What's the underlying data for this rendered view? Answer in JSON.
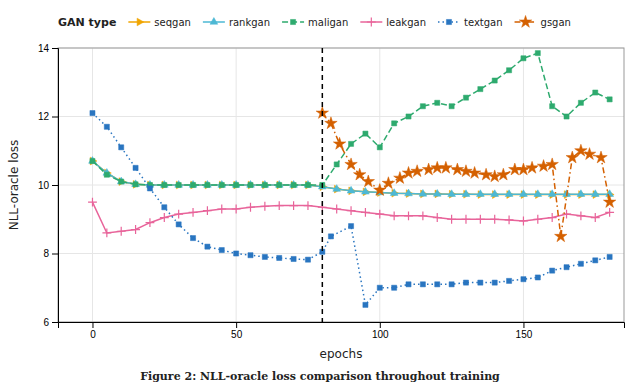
{
  "chart_data": {
    "type": "line",
    "xlabel": "epochs",
    "ylabel": "NLL-oracle loss",
    "caption": "Figure 2: NLL-oracle loss comparison throughout training",
    "legend_title": "GAN type",
    "legend": "top",
    "grid": true,
    "xlim": [
      -12,
      185
    ],
    "ylim": [
      6,
      14
    ],
    "xticks": [
      0,
      50,
      100,
      150
    ],
    "yticks": [
      6,
      8,
      10,
      12,
      14
    ],
    "vline_x": 80,
    "series": [
      {
        "name": "seqgan",
        "color": "#F0A500",
        "marker": "triangle-right",
        "line_style": "solid",
        "x": [
          0,
          5,
          10,
          15,
          20,
          25,
          30,
          35,
          40,
          45,
          50,
          55,
          60,
          65,
          70,
          75,
          80,
          85,
          90,
          95,
          100,
          105,
          110,
          115,
          120,
          125,
          130,
          135,
          140,
          145,
          150,
          155,
          160,
          165,
          170,
          175,
          180
        ],
        "values": [
          10.7,
          10.35,
          10.1,
          10.02,
          10.0,
          10.0,
          10.0,
          10.0,
          10.0,
          10.0,
          10.0,
          10.0,
          10.0,
          10.0,
          10.0,
          10.0,
          9.95,
          9.88,
          9.83,
          9.8,
          9.78,
          9.76,
          9.75,
          9.74,
          9.74,
          9.73,
          9.73,
          9.72,
          9.72,
          9.72,
          9.72,
          9.72,
          9.72,
          9.72,
          9.72,
          9.72,
          9.72
        ]
      },
      {
        "name": "rankgan",
        "color": "#4DB8D4",
        "marker": "triangle-up",
        "line_style": "solid",
        "x": [
          0,
          5,
          10,
          15,
          20,
          25,
          30,
          35,
          40,
          45,
          50,
          55,
          60,
          65,
          70,
          75,
          80,
          85,
          90,
          95,
          100,
          105,
          110,
          115,
          120,
          125,
          130,
          135,
          140,
          145,
          150,
          155,
          160,
          165,
          170,
          175,
          180
        ],
        "values": [
          10.7,
          10.35,
          10.1,
          10.02,
          10.0,
          10.0,
          10.0,
          10.0,
          10.0,
          10.0,
          10.0,
          10.0,
          10.0,
          10.0,
          10.0,
          10.0,
          9.95,
          9.88,
          9.83,
          9.8,
          9.78,
          9.76,
          9.75,
          9.74,
          9.74,
          9.73,
          9.73,
          9.73,
          9.73,
          9.73,
          9.73,
          9.73,
          9.73,
          9.73,
          9.73,
          9.73,
          9.73
        ]
      },
      {
        "name": "maligan",
        "color": "#2EAA6E",
        "marker": "square",
        "line_style": "dashed",
        "x": [
          0,
          5,
          10,
          15,
          20,
          25,
          30,
          35,
          40,
          45,
          50,
          55,
          60,
          65,
          70,
          75,
          80,
          85,
          90,
          95,
          100,
          105,
          110,
          115,
          120,
          125,
          130,
          135,
          140,
          145,
          150,
          155,
          160,
          165,
          170,
          175,
          180
        ],
        "values": [
          10.7,
          10.3,
          10.1,
          10.02,
          10.0,
          10.0,
          10.0,
          10.0,
          10.0,
          10.0,
          10.0,
          10.0,
          10.0,
          10.0,
          10.0,
          10.0,
          10.0,
          10.6,
          11.2,
          11.5,
          11.1,
          11.8,
          12.0,
          12.3,
          12.4,
          12.3,
          12.55,
          12.8,
          13.05,
          13.35,
          13.7,
          13.85,
          12.3,
          12.0,
          12.4,
          12.7,
          12.5
        ]
      },
      {
        "name": "leakgan",
        "color": "#E8649A",
        "marker": "plus",
        "line_style": "solid",
        "x": [
          0,
          5,
          10,
          15,
          20,
          25,
          30,
          35,
          40,
          45,
          50,
          55,
          60,
          65,
          70,
          75,
          80,
          85,
          90,
          95,
          100,
          105,
          110,
          115,
          120,
          125,
          130,
          135,
          140,
          145,
          150,
          155,
          160,
          165,
          170,
          175,
          180
        ],
        "values": [
          9.5,
          8.6,
          8.65,
          8.7,
          8.9,
          9.05,
          9.15,
          9.2,
          9.25,
          9.3,
          9.3,
          9.35,
          9.38,
          9.4,
          9.4,
          9.4,
          9.35,
          9.3,
          9.25,
          9.2,
          9.15,
          9.1,
          9.1,
          9.1,
          9.05,
          9.0,
          9.0,
          9.0,
          9.0,
          8.98,
          8.95,
          9.0,
          9.05,
          9.15,
          9.1,
          9.05,
          9.2
        ]
      },
      {
        "name": "textgan",
        "color": "#2975C0",
        "marker": "square",
        "line_style": "dotted",
        "x": [
          0,
          5,
          10,
          15,
          20,
          25,
          30,
          35,
          40,
          45,
          50,
          55,
          60,
          65,
          70,
          75,
          80,
          83,
          90,
          95,
          100,
          105,
          110,
          115,
          120,
          125,
          130,
          135,
          140,
          145,
          150,
          155,
          160,
          165,
          170,
          175,
          180
        ],
        "values": [
          12.1,
          11.7,
          11.1,
          10.5,
          9.9,
          9.35,
          8.85,
          8.45,
          8.2,
          8.1,
          8.0,
          7.95,
          7.9,
          7.87,
          7.84,
          7.82,
          8.05,
          8.5,
          8.8,
          6.5,
          7.0,
          7.0,
          7.1,
          7.1,
          7.1,
          7.1,
          7.15,
          7.15,
          7.15,
          7.2,
          7.25,
          7.3,
          7.5,
          7.6,
          7.7,
          7.8,
          7.9
        ]
      },
      {
        "name": "gsgan",
        "color": "#D46000",
        "marker": "star",
        "line_style": "dashdot",
        "x": [
          80,
          83,
          86,
          90,
          93,
          96,
          100,
          103,
          107,
          110,
          113,
          117,
          120,
          123,
          127,
          130,
          133,
          137,
          140,
          143,
          147,
          150,
          153,
          157,
          160,
          163,
          167,
          170,
          173,
          177,
          180
        ],
        "values": [
          12.1,
          11.8,
          11.2,
          10.6,
          10.3,
          10.1,
          9.85,
          10.05,
          10.2,
          10.35,
          10.4,
          10.45,
          10.5,
          10.5,
          10.45,
          10.4,
          10.35,
          10.3,
          10.25,
          10.3,
          10.45,
          10.45,
          10.5,
          10.55,
          10.6,
          8.5,
          10.8,
          11.0,
          10.9,
          10.8,
          9.5
        ]
      }
    ]
  }
}
